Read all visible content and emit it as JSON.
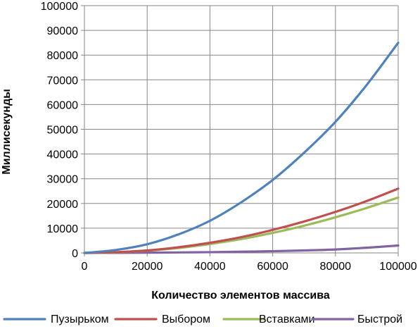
{
  "chart_data": {
    "type": "line",
    "xlabel": "Количество элементов массива",
    "ylabel": "Миллисекунды",
    "xlim": [
      0,
      100000
    ],
    "ylim": [
      0,
      100000
    ],
    "x_ticks": [
      0,
      20000,
      40000,
      60000,
      80000,
      100000
    ],
    "y_ticks": [
      0,
      10000,
      20000,
      30000,
      40000,
      50000,
      60000,
      70000,
      80000,
      90000,
      100000
    ],
    "grid": true,
    "legend_position": "bottom",
    "x": [
      0,
      10000,
      20000,
      30000,
      40000,
      50000,
      60000,
      70000,
      80000,
      90000,
      100000
    ],
    "series": [
      {
        "name": "Пузырьком",
        "color": "#4F81BD",
        "values": [
          0,
          1200,
          3500,
          7500,
          13000,
          20500,
          29500,
          40500,
          53000,
          68000,
          85000
        ]
      },
      {
        "name": "Выбором",
        "color": "#C0504D",
        "values": [
          0,
          300,
          1000,
          2300,
          4100,
          6400,
          9300,
          12700,
          16600,
          21000,
          26000
        ]
      },
      {
        "name": "Вставками",
        "color": "#9BBB59",
        "values": [
          0,
          250,
          900,
          2000,
          3600,
          5600,
          8100,
          11000,
          14400,
          18200,
          22400
        ]
      },
      {
        "name": "Быстрой",
        "color": "#8064A2",
        "values": [
          0,
          30,
          100,
          200,
          300,
          500,
          700,
          1000,
          1400,
          2100,
          3000
        ]
      }
    ]
  }
}
